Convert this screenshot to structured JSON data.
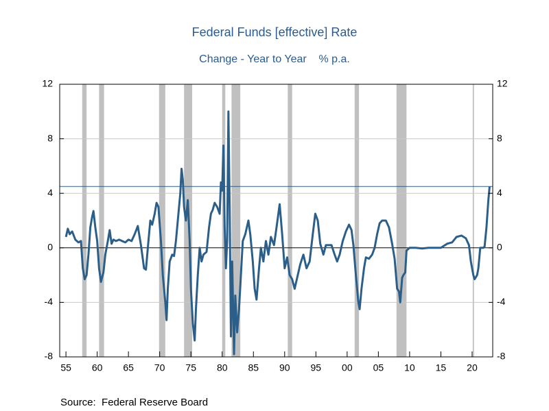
{
  "chart_data": {
    "type": "line",
    "title": "Federal Funds [effective] Rate",
    "subtitle": "Change - Year to Year    % p.a.",
    "source": "Source:  Federal Reserve Board",
    "xlim": [
      1954,
      2023.3
    ],
    "ylim": [
      -8,
      12
    ],
    "y2lim": [
      -8,
      12
    ],
    "yticks": [
      -8,
      -4,
      0,
      4,
      8,
      12
    ],
    "y2ticks": [
      -8,
      -4,
      0,
      4,
      8,
      12
    ],
    "xticks": [
      {
        "value": 1955,
        "label": "55"
      },
      {
        "value": 1960,
        "label": "60"
      },
      {
        "value": 1965,
        "label": "65"
      },
      {
        "value": 1970,
        "label": "70"
      },
      {
        "value": 1975,
        "label": "75"
      },
      {
        "value": 1980,
        "label": "80"
      },
      {
        "value": 1985,
        "label": "85"
      },
      {
        "value": 1990,
        "label": "90"
      },
      {
        "value": 1995,
        "label": "95"
      },
      {
        "value": 2000,
        "label": "00"
      },
      {
        "value": 2005,
        "label": "05"
      },
      {
        "value": 2010,
        "label": "10"
      },
      {
        "value": 2015,
        "label": "15"
      },
      {
        "value": 2020,
        "label": "20"
      }
    ],
    "grid": true,
    "grid_color": "#c8c8c8",
    "shade_color": "#c0c0c0",
    "shaded_periods": [
      [
        1957.6,
        1958.3
      ],
      [
        1960.3,
        1961.1
      ],
      [
        1969.9,
        1970.9
      ],
      [
        1973.9,
        1975.2
      ],
      [
        1980.0,
        1980.5
      ],
      [
        1981.5,
        1982.9
      ],
      [
        1990.5,
        1991.2
      ],
      [
        2001.2,
        2001.9
      ],
      [
        2007.9,
        2009.5
      ],
      [
        2020.1,
        2020.3
      ]
    ],
    "reference_line": 4.5,
    "reference_color": "#2a5b8c",
    "series": [
      {
        "name": "Federal Funds Rate",
        "color": "#2b5f8a",
        "x": [
          1955.0,
          1955.3,
          1955.6,
          1956.0,
          1956.5,
          1957.0,
          1957.4,
          1957.7,
          1958.0,
          1958.3,
          1958.6,
          1958.9,
          1959.2,
          1959.4,
          1959.7,
          1960.0,
          1960.3,
          1960.6,
          1961.0,
          1961.3,
          1961.7,
          1962.0,
          1962.3,
          1962.6,
          1963.0,
          1963.5,
          1964.0,
          1964.5,
          1965.0,
          1965.5,
          1966.0,
          1966.5,
          1967.0,
          1967.5,
          1967.8,
          1968.2,
          1968.5,
          1968.8,
          1969.2,
          1969.5,
          1969.8,
          1970.2,
          1970.5,
          1970.9,
          1971.1,
          1971.3,
          1971.6,
          1972.0,
          1972.3,
          1972.6,
          1973.0,
          1973.3,
          1973.5,
          1973.7,
          1973.9,
          1974.2,
          1974.5,
          1974.8,
          1975.0,
          1975.3,
          1975.6,
          1975.8,
          1976.1,
          1976.4,
          1976.7,
          1977.0,
          1977.5,
          1977.9,
          1978.2,
          1978.5,
          1978.8,
          1979.2,
          1979.6,
          1979.8,
          1980.0,
          1980.2,
          1980.4,
          1980.6,
          1980.8,
          1981.0,
          1981.2,
          1981.4,
          1981.6,
          1981.9,
          1982.1,
          1982.4,
          1982.7,
          1983.0,
          1983.3,
          1983.7,
          1984.2,
          1984.5,
          1984.9,
          1985.2,
          1985.5,
          1985.9,
          1986.2,
          1986.6,
          1987.0,
          1987.4,
          1987.8,
          1988.3,
          1988.7,
          1989.2,
          1989.6,
          1990.0,
          1990.4,
          1990.8,
          1991.2,
          1991.6,
          1992.0,
          1992.5,
          1993.0,
          1993.5,
          1994.0,
          1994.5,
          1994.9,
          1995.3,
          1995.7,
          1996.2,
          1996.6,
          1997.0,
          1997.5,
          1998.0,
          1998.4,
          1998.8,
          1999.3,
          1999.8,
          2000.3,
          2000.7,
          2001.0,
          2001.4,
          2001.8,
          2002.0,
          2002.3,
          2002.7,
          2003.0,
          2003.5,
          2004.0,
          2004.4,
          2004.8,
          2005.2,
          2005.6,
          2006.2,
          2006.7,
          2007.2,
          2007.6,
          2008.0,
          2008.3,
          2008.5,
          2008.8,
          2009.0,
          2009.3,
          2009.5,
          2010.0,
          2011.0,
          2012.0,
          2013.0,
          2014.0,
          2015.0,
          2016.0,
          2016.8,
          2017.5,
          2018.3,
          2019.0,
          2019.5,
          2019.8,
          2020.2,
          2020.4,
          2020.8,
          2021.0,
          2021.3,
          2021.8,
          2022.0,
          2022.3,
          2022.6,
          2022.8
        ],
        "values": [
          0.8,
          1.4,
          1.0,
          1.2,
          0.6,
          0.4,
          0.5,
          -1.5,
          -2.3,
          -2.0,
          -0.5,
          1.5,
          2.3,
          2.7,
          1.5,
          0.5,
          -1.5,
          -2.5,
          -1.8,
          -0.5,
          0.5,
          1.3,
          0.3,
          0.6,
          0.5,
          0.6,
          0.5,
          0.4,
          0.6,
          0.5,
          1.0,
          1.6,
          0.2,
          -1.5,
          -1.6,
          0.5,
          2.0,
          1.7,
          2.5,
          3.3,
          3.0,
          0.5,
          -2.0,
          -4.0,
          -5.3,
          -3.0,
          -1.0,
          -0.5,
          -0.6,
          0.5,
          2.5,
          4.0,
          5.8,
          5.0,
          3.0,
          2.0,
          3.5,
          0.5,
          -3.0,
          -5.5,
          -6.8,
          -4.5,
          -2.0,
          0.0,
          -1.0,
          -0.5,
          -0.3,
          1.5,
          2.5,
          2.8,
          3.3,
          3.0,
          2.5,
          4.8,
          4.2,
          7.5,
          1.5,
          -1.5,
          0.5,
          10.0,
          3.0,
          -6.5,
          -1.0,
          -7.8,
          -3.5,
          -6.2,
          -4.5,
          -2.0,
          0.5,
          1.0,
          2.0,
          1.0,
          -1.0,
          -3.0,
          -3.8,
          -1.5,
          0,
          -1.0,
          0.5,
          -0.5,
          0.8,
          0.2,
          1.5,
          3.2,
          1.0,
          -1.5,
          -0.7,
          -2.0,
          -2.3,
          -3.0,
          -2.2,
          -1.2,
          -0.5,
          -1.5,
          -1.0,
          1.0,
          2.5,
          2.0,
          0.3,
          -0.5,
          0.2,
          0.2,
          0.2,
          -0.5,
          -1.0,
          -0.5,
          0.5,
          1.2,
          1.7,
          1.3,
          0.2,
          -2.0,
          -4.0,
          -4.5,
          -3.0,
          -1.5,
          -0.7,
          -0.8,
          -0.5,
          0,
          1.0,
          1.8,
          2.0,
          2.0,
          1.5,
          0.3,
          -0.8,
          -3.0,
          -3.2,
          -4.0,
          -2.2,
          -2.0,
          -1.8,
          -0.2,
          0,
          0,
          -0.05,
          0,
          0,
          0,
          0.3,
          0.4,
          0.8,
          0.9,
          0.7,
          0.2,
          -1.0,
          -2.0,
          -2.3,
          -2.0,
          -1.5,
          0,
          0,
          0.1,
          1.5,
          3.5,
          4.5
        ]
      }
    ]
  }
}
